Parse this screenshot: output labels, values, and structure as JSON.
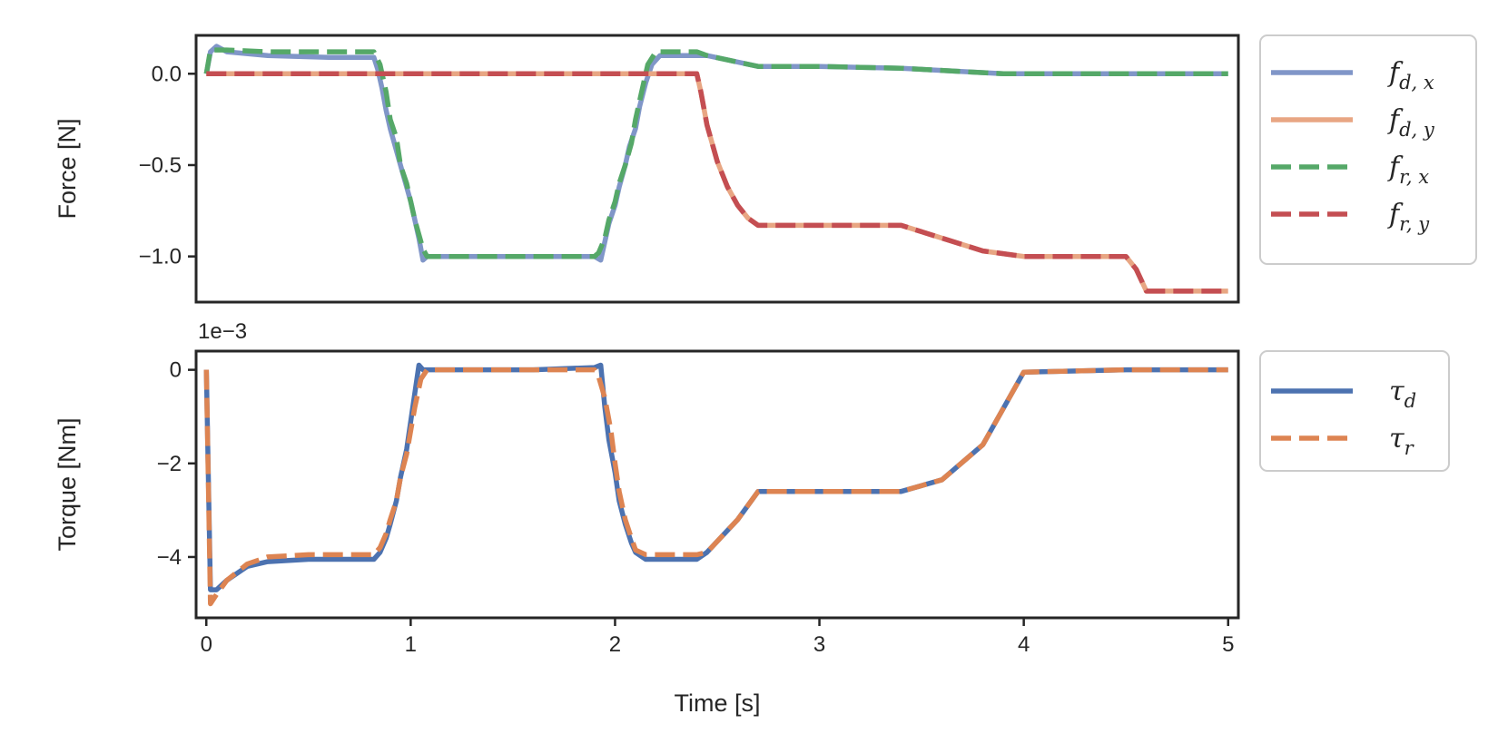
{
  "chart_data": [
    {
      "type": "line",
      "ylabel": "Force [N]",
      "xlim": [
        -0.05,
        5.05
      ],
      "ylim": [
        -1.25,
        0.21
      ],
      "yticks": [
        "0.0",
        "−0.5",
        "−1.0"
      ],
      "ytick_values": [
        0,
        -0.5,
        -1.0
      ],
      "grid": false,
      "legend_position": "outside-right",
      "series": [
        {
          "name": "f_d,x",
          "legend": {
            "base": "f",
            "sub": "d, x"
          },
          "color": "#8096c8",
          "style": "solid",
          "x": [
            0,
            0.02,
            0.05,
            0.1,
            0.3,
            0.6,
            0.82,
            0.84,
            0.86,
            0.88,
            0.9,
            0.93,
            0.95,
            0.98,
            1.0,
            1.02,
            1.04,
            1.06,
            1.08,
            1.1,
            1.3,
            1.6,
            1.9,
            1.93,
            1.95,
            1.97,
            2.0,
            2.02,
            2.05,
            2.07,
            2.1,
            2.12,
            2.15,
            2.18,
            2.22,
            2.3,
            2.4,
            2.45,
            2.7,
            3.0,
            3.4,
            3.9,
            4.5,
            5.0
          ],
          "y": [
            0,
            0.12,
            0.15,
            0.12,
            0.1,
            0.09,
            0.09,
            0.02,
            -0.08,
            -0.2,
            -0.3,
            -0.42,
            -0.5,
            -0.62,
            -0.7,
            -0.8,
            -0.9,
            -1.02,
            -1.0,
            -1.0,
            -1.0,
            -1.0,
            -1.0,
            -1.02,
            -0.92,
            -0.82,
            -0.72,
            -0.62,
            -0.5,
            -0.4,
            -0.3,
            -0.18,
            -0.05,
            0.05,
            0.1,
            0.1,
            0.1,
            0.1,
            0.04,
            0.04,
            0.03,
            0.0,
            0.0,
            0.0
          ]
        },
        {
          "name": "f_d,y",
          "legend": {
            "base": "f",
            "sub": "d, y"
          },
          "color": "#e8a683",
          "style": "solid",
          "x": [
            0,
            2.4,
            2.42,
            2.45,
            2.5,
            2.55,
            2.6,
            2.65,
            2.7,
            3.0,
            3.4,
            3.6,
            3.8,
            4.0,
            4.5,
            4.55,
            4.6,
            5.0
          ],
          "y": [
            0,
            0,
            -0.1,
            -0.28,
            -0.48,
            -0.62,
            -0.72,
            -0.79,
            -0.83,
            -0.83,
            -0.83,
            -0.9,
            -0.97,
            -1.0,
            -1.0,
            -1.07,
            -1.19,
            -1.19
          ]
        },
        {
          "name": "f_r,x",
          "legend": {
            "base": "f",
            "sub": "r, x"
          },
          "color": "#55a868",
          "style": "dashed",
          "x": [
            0,
            0.02,
            0.05,
            0.1,
            0.3,
            0.6,
            0.82,
            0.85,
            0.88,
            0.9,
            0.93,
            0.95,
            0.98,
            1.0,
            1.02,
            1.04,
            1.06,
            1.08,
            1.1,
            1.3,
            1.6,
            1.9,
            1.92,
            1.95,
            1.97,
            2.0,
            2.02,
            2.05,
            2.08,
            2.1,
            2.13,
            2.16,
            2.2,
            2.3,
            2.4,
            2.45,
            2.7,
            3.0,
            3.4,
            3.9,
            4.5,
            5.0
          ],
          "y": [
            0,
            0.13,
            0.13,
            0.13,
            0.12,
            0.12,
            0.12,
            0.05,
            -0.1,
            -0.25,
            -0.35,
            -0.5,
            -0.6,
            -0.7,
            -0.8,
            -0.88,
            -0.96,
            -1.0,
            -1.0,
            -1.0,
            -1.0,
            -1.0,
            -0.98,
            -0.9,
            -0.8,
            -0.7,
            -0.6,
            -0.5,
            -0.38,
            -0.25,
            -0.1,
            0.05,
            0.12,
            0.12,
            0.12,
            0.1,
            0.04,
            0.04,
            0.03,
            0.0,
            0.0,
            0.0
          ]
        },
        {
          "name": "f_r,y",
          "legend": {
            "base": "f",
            "sub": "r, y"
          },
          "color": "#c44e52",
          "style": "dashed",
          "x": [
            0,
            2.4,
            2.42,
            2.45,
            2.5,
            2.55,
            2.6,
            2.65,
            2.7,
            3.0,
            3.4,
            3.6,
            3.8,
            4.0,
            4.5,
            4.55,
            4.6,
            5.0
          ],
          "y": [
            0,
            0,
            -0.1,
            -0.28,
            -0.48,
            -0.62,
            -0.72,
            -0.79,
            -0.83,
            -0.83,
            -0.83,
            -0.9,
            -0.97,
            -1.0,
            -1.0,
            -1.07,
            -1.19,
            -1.19
          ]
        }
      ]
    },
    {
      "type": "line",
      "xlabel": "Time [s]",
      "ylabel": "Torque [Nm]",
      "offset_text": "1e−3",
      "xlim": [
        -0.05,
        5.05
      ],
      "ylim": [
        -5.3,
        0.4
      ],
      "xticks": [
        "0",
        "1",
        "2",
        "3",
        "4",
        "5"
      ],
      "xtick_values": [
        0,
        1,
        2,
        3,
        4,
        5
      ],
      "yticks": [
        "0",
        "−2",
        "−4"
      ],
      "ytick_values": [
        0,
        -2,
        -4
      ],
      "grid": false,
      "legend_position": "outside-right",
      "series": [
        {
          "name": "τ_d",
          "legend": {
            "base": "τ",
            "sub": "d"
          },
          "color": "#4c72b0",
          "style": "solid",
          "x": [
            0,
            0.02,
            0.05,
            0.1,
            0.2,
            0.3,
            0.5,
            0.7,
            0.82,
            0.85,
            0.88,
            0.9,
            0.93,
            0.95,
            0.98,
            1.0,
            1.02,
            1.04,
            1.06,
            1.08,
            1.1,
            1.3,
            1.6,
            1.9,
            1.93,
            1.95,
            1.97,
            2.0,
            2.02,
            2.05,
            2.08,
            2.1,
            2.15,
            2.2,
            2.4,
            2.45,
            2.6,
            2.7,
            3.0,
            3.4,
            3.6,
            3.8,
            4.0,
            4.5,
            5.0
          ],
          "y": [
            0,
            -4.7,
            -4.7,
            -4.5,
            -4.2,
            -4.1,
            -4.05,
            -4.05,
            -4.05,
            -3.9,
            -3.6,
            -3.3,
            -2.8,
            -2.3,
            -1.7,
            -1.1,
            -0.5,
            0.1,
            0.0,
            0.0,
            0.0,
            0.0,
            0.0,
            0.05,
            0.1,
            -0.8,
            -1.5,
            -2.2,
            -2.8,
            -3.3,
            -3.7,
            -3.9,
            -4.05,
            -4.05,
            -4.05,
            -3.9,
            -3.2,
            -2.6,
            -2.6,
            -2.6,
            -2.35,
            -1.6,
            -0.05,
            0.0,
            0.0
          ]
        },
        {
          "name": "τ_r",
          "legend": {
            "base": "τ",
            "sub": "r"
          },
          "color": "#dd8452",
          "style": "dashed",
          "x": [
            0,
            0.02,
            0.05,
            0.1,
            0.2,
            0.3,
            0.5,
            0.7,
            0.82,
            0.85,
            0.88,
            0.9,
            0.93,
            0.95,
            0.98,
            1.0,
            1.02,
            1.05,
            1.08,
            1.1,
            1.3,
            1.6,
            1.9,
            1.92,
            1.95,
            1.98,
            2.0,
            2.02,
            2.05,
            2.08,
            2.1,
            2.15,
            2.2,
            2.4,
            2.45,
            2.6,
            2.7,
            3.0,
            3.4,
            3.6,
            3.8,
            4.0,
            4.5,
            5.0
          ],
          "y": [
            0,
            -5.0,
            -4.8,
            -4.5,
            -4.15,
            -4.0,
            -3.95,
            -3.95,
            -3.95,
            -3.8,
            -3.5,
            -3.2,
            -2.8,
            -2.3,
            -1.8,
            -1.3,
            -0.8,
            -0.2,
            0.0,
            0.0,
            0.0,
            0.0,
            0.0,
            -0.15,
            -0.6,
            -1.3,
            -2.0,
            -2.6,
            -3.2,
            -3.6,
            -3.85,
            -3.95,
            -3.95,
            -3.95,
            -3.9,
            -3.2,
            -2.6,
            -2.6,
            -2.6,
            -2.35,
            -1.6,
            -0.05,
            0.0,
            0.0
          ]
        }
      ]
    }
  ]
}
